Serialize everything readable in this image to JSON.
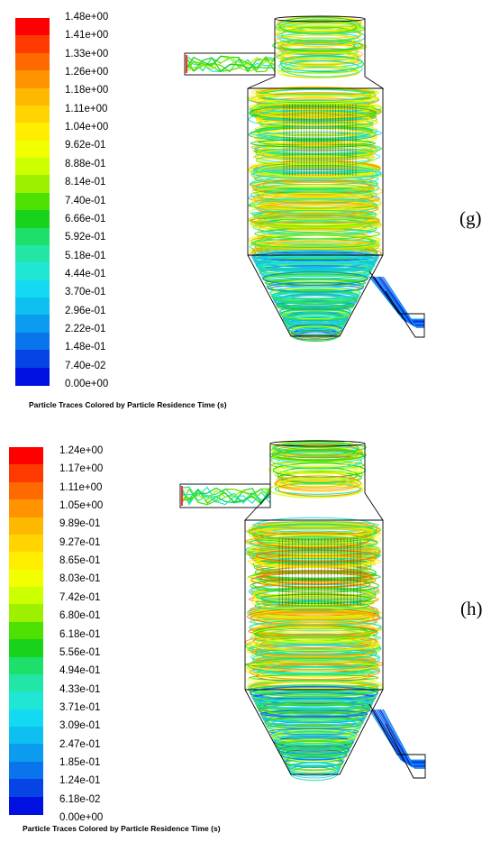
{
  "panels": [
    {
      "id": "g",
      "label": "(g)",
      "caption": "Particle Traces Colored by Particle Residence Time (s)",
      "ticks": [
        "1.48e+00",
        "1.41e+00",
        "1.33e+00",
        "1.26e+00",
        "1.18e+00",
        "1.11e+00",
        "1.04e+00",
        "9.62e-01",
        "8.88e-01",
        "8.14e-01",
        "7.40e-01",
        "6.66e-01",
        "5.92e-01",
        "5.18e-01",
        "4.44e-01",
        "3.70e-01",
        "2.96e-01",
        "2.22e-01",
        "1.48e-01",
        "7.40e-02",
        "0.00e+00"
      ]
    },
    {
      "id": "h",
      "label": "(h)",
      "caption": "Particle Traces Colored by Particle Residence Time (s)",
      "ticks": [
        "1.24e+00",
        "1.17e+00",
        "1.11e+00",
        "1.05e+00",
        "9.89e-01",
        "9.27e-01",
        "8.65e-01",
        "8.03e-01",
        "7.42e-01",
        "6.80e-01",
        "6.18e-01",
        "5.56e-01",
        "4.94e-01",
        "4.33e-01",
        "3.71e-01",
        "3.09e-01",
        "2.47e-01",
        "1.85e-01",
        "1.24e-01",
        "6.18e-02",
        "0.00e+00"
      ]
    }
  ],
  "colormap": [
    "#ff0000",
    "#ff3a00",
    "#ff6a00",
    "#ff9400",
    "#ffb800",
    "#ffd400",
    "#ffee00",
    "#f2ff00",
    "#ccff00",
    "#9cf000",
    "#4ee000",
    "#19d21c",
    "#1de06a",
    "#22e6a6",
    "#20e6d6",
    "#13daf2",
    "#0dc0f0",
    "#0b9cf0",
    "#0a74ec",
    "#0644e6",
    "#0010e0"
  ],
  "colors": {
    "geometry_outline": "#000000"
  }
}
